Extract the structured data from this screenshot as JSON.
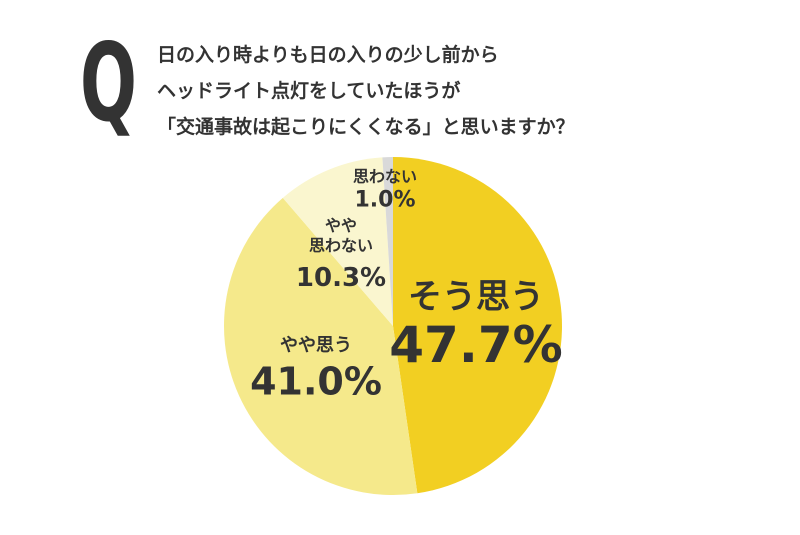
{
  "header": {
    "mark": "Q",
    "lines": [
      "日の入り時よりも日の入りの少し前から",
      "ヘッドライト点灯をしていたほうが",
      "「交通事故は起こりにくくなる」と思いますか？"
    ]
  },
  "chart_data": {
    "type": "pie",
    "categories": [
      "そう思う",
      "やや思う",
      "やや\n思わない",
      "思わない"
    ],
    "values": [
      47.7,
      41.0,
      10.3,
      1.0
    ],
    "value_labels": [
      "47.7%",
      "41.0%",
      "10.3%",
      "1.0%"
    ],
    "colors": [
      "#f2cf22",
      "#f5e98b",
      "#faf6cf",
      "#d9d9d9"
    ]
  }
}
